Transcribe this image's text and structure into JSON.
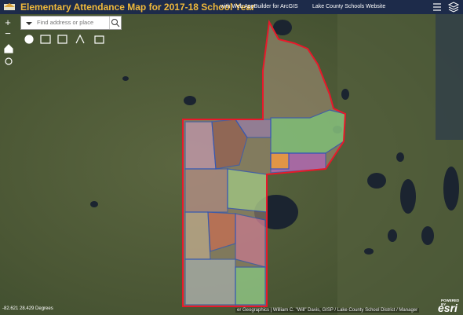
{
  "header": {
    "title": "Elementary Attendance Map for 2017-18 School Year",
    "links": [
      "with Web AppBuilder for ArcGIS",
      "Lake County Schools Website"
    ]
  },
  "search": {
    "placeholder": "Find address or place"
  },
  "zoom": {
    "in": "+",
    "out": "−"
  },
  "map": {
    "coordinates": "-82.621 28.429 Degrees",
    "attribution": "er Geographics | William C. \"Will\" Davis, GISP / Lake County School District / Manager",
    "powered_by": "POWERED BY",
    "logo": "esri"
  }
}
